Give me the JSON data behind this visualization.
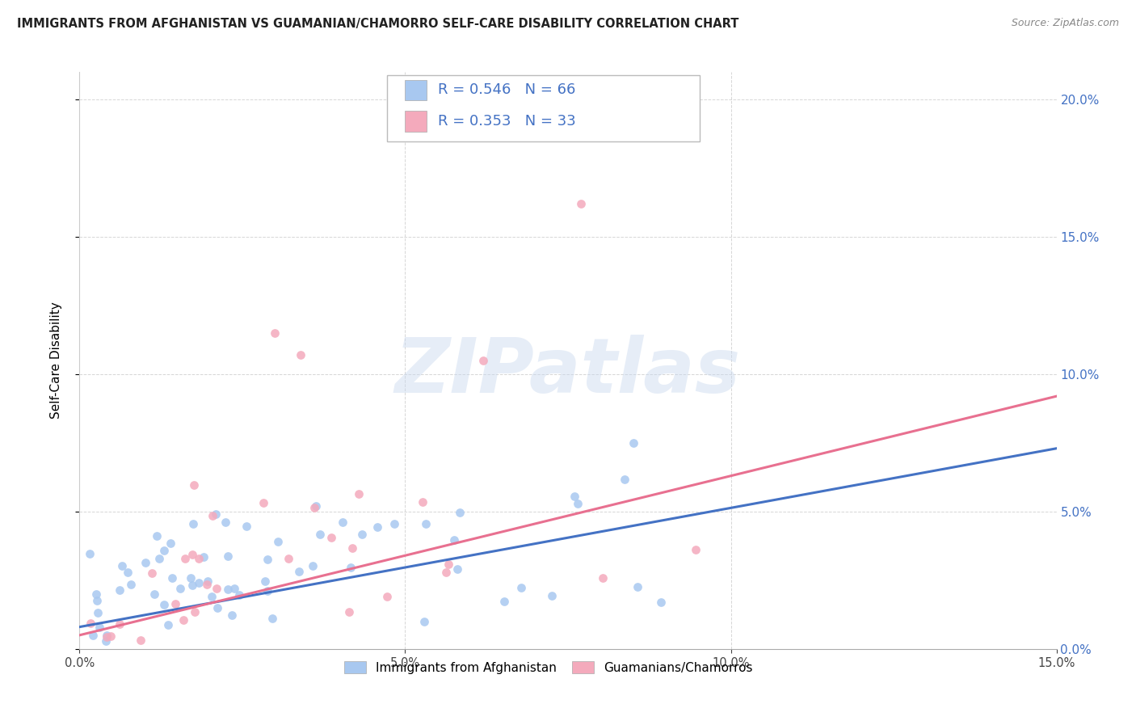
{
  "title": "IMMIGRANTS FROM AFGHANISTAN VS GUAMANIAN/CHAMORRO SELF-CARE DISABILITY CORRELATION CHART",
  "source": "Source: ZipAtlas.com",
  "ylabel": "Self-Care Disability",
  "legend_blue_r": "R = 0.546",
  "legend_blue_n": "N = 66",
  "legend_pink_r": "R = 0.353",
  "legend_pink_n": "N = 33",
  "legend_label_blue": "Immigrants from Afghanistan",
  "legend_label_pink": "Guamanians/Chamorros",
  "blue_scatter_color": "#A8C8F0",
  "pink_scatter_color": "#F4AABC",
  "blue_line_color": "#4472C4",
  "pink_line_color": "#E87090",
  "legend_text_color": "#4472C4",
  "x_min": 0.0,
  "x_max": 0.15,
  "y_min": 0.0,
  "y_max": 0.21,
  "watermark": "ZIPatlas",
  "blue_trendline_x": [
    0.0,
    0.15
  ],
  "blue_trendline_y": [
    0.008,
    0.073
  ],
  "pink_trendline_x": [
    0.0,
    0.15
  ],
  "pink_trendline_y": [
    0.005,
    0.092
  ]
}
